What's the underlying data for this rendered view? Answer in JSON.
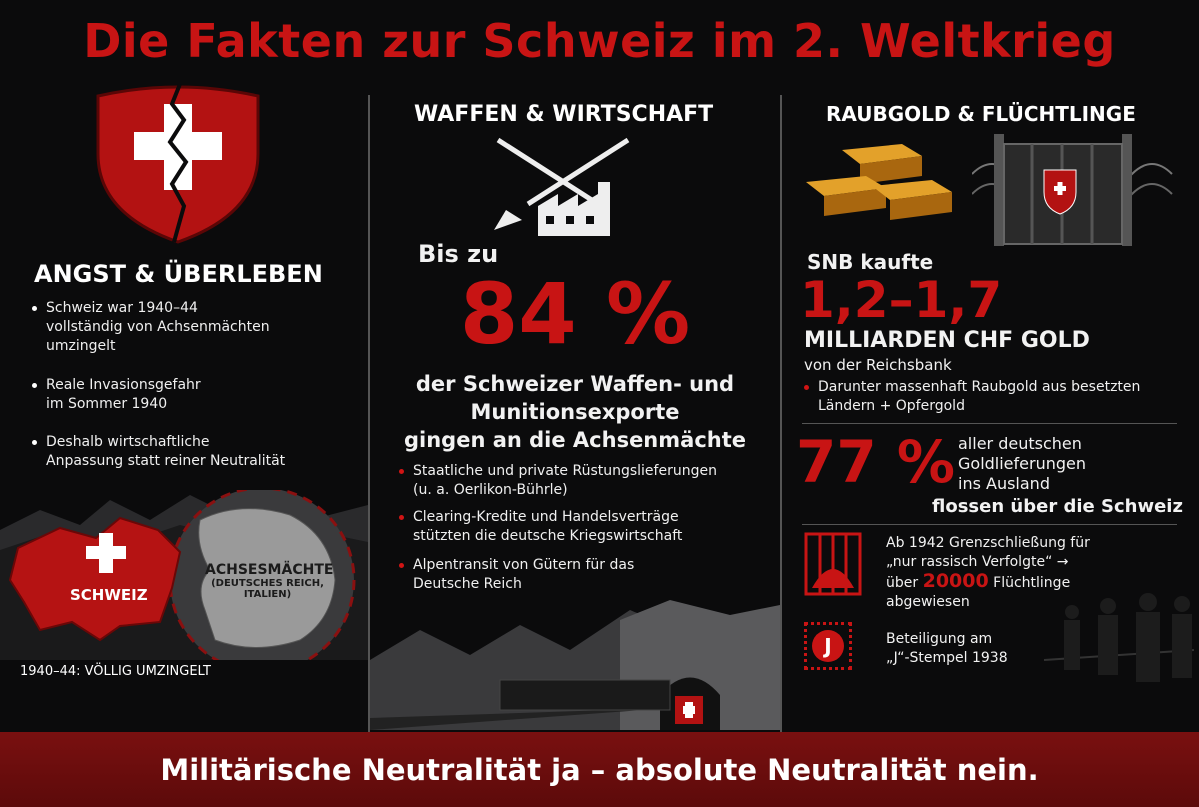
{
  "title": "Die Fakten zur Schweiz im 2. Weltkrieg",
  "col1": {
    "heading": "ANGST & ÜBERLEBEN",
    "bullets": [
      [
        "Schweiz war 1940–44",
        "vollständig von Achsenmächten",
        "umzingelt"
      ],
      [
        "Reale Invasionsgefahr",
        "im Sommer 1940"
      ],
      [
        "Deshalb wirtschaftliche",
        "Anpassung statt reiner Neutralität"
      ]
    ],
    "map_switzerland": "SCHWEIZ",
    "map_axis": [
      "ACHSESMÄCHTE",
      "(DEUTSCHES REICH,",
      "ITALIEN)"
    ],
    "caption": "1940–44: VÖLLIG UMZINGELT"
  },
  "col2": {
    "heading": "WAFFEN & WIRTSCHAFT",
    "pre": "Bis zu",
    "big_value": "84 %",
    "desc": [
      "der Schweizer Waffen- und",
      "Munitionsexporte",
      "gingen an die Achsenmächte"
    ],
    "bullets": [
      [
        "Staatliche und private Rüstungslieferungen",
        "(u. a. Oerlikon-Bührle)"
      ],
      [
        "Clearing-Kredite und Handelsverträge",
        "stützten die deutsche Kriegswirtschaft"
      ],
      [
        "Alpentransit von Gütern für das",
        "Deutsche Reich"
      ]
    ]
  },
  "col3": {
    "heading": "RAUBGOLD & FLÜCHTLINGE",
    "snb_label": "SNB kaufte",
    "gold_value": "1,2–1,7",
    "gold_unit": "MILLIARDEN CHF GOLD",
    "gold_source": "von der Reichsbank",
    "gold_bullet": [
      "Darunter massenhaft Raubgold aus besetzten",
      "Ländern + Opfergold"
    ],
    "pct_value": "77 %",
    "pct_text": [
      "aller deutschen",
      "Goldlieferungen",
      "ins Ausland"
    ],
    "pct_text_last": "flossen über die Schweiz",
    "refugee": {
      "line1": "Ab 1942 Grenzschließung für",
      "line2": "„nur rassisch Verfolgte“ →",
      "prefix": "über",
      "count": "20000",
      "suffix": "Flüchtlinge",
      "line4": "abgewiesen"
    },
    "stamp_letter": "J",
    "stamp_text": [
      "Beteiligung am",
      "„J“-Stempel 1938"
    ]
  },
  "footer": "Militärische Neutralität ja – absolute Neutralität nein.",
  "colors": {
    "red": "#c81414",
    "background": "#0b0b0c",
    "footer": "#6a0d0d"
  }
}
